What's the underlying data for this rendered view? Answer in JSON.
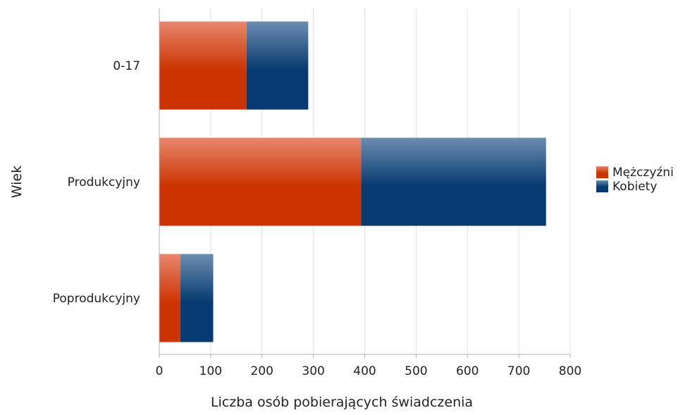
{
  "chart_data": {
    "type": "bar",
    "orientation": "horizontal",
    "stacked": true,
    "title": "",
    "xlabel": "Liczba osób pobierających świadczenia",
    "ylabel": "Wiek",
    "categories": [
      "0-17",
      "Produkcyjny",
      "Poprodukcyjny"
    ],
    "series": [
      {
        "name": "Mężczyźni",
        "color": "#cc3300",
        "values": [
          170,
          393,
          41
        ]
      },
      {
        "name": "Kobiety",
        "color": "#0a3f75",
        "values": [
          120,
          360,
          64
        ]
      }
    ],
    "xlim": [
      0,
      800
    ],
    "xticks": [
      0,
      100,
      200,
      300,
      400,
      500,
      600,
      700,
      800
    ],
    "grid": true,
    "legend_position": "right"
  }
}
